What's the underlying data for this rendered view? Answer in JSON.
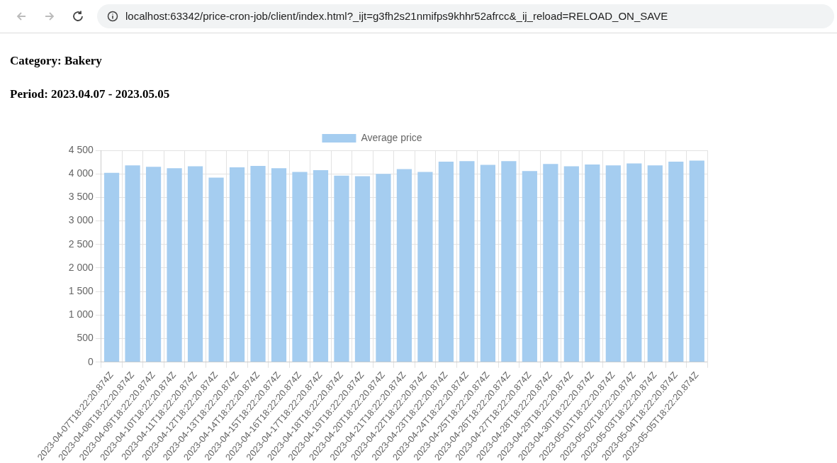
{
  "chart_data": {
    "type": "bar",
    "title": "Category: Bakery",
    "subtitle": "Period: 2023.04.07 - 2023.05.05",
    "annotations": [
      "localhost:63342/price-cron-job/client/index.html?_ijt=g3fh2s21nmifps9khhr52afrcc&_ij_reload=RELOAD_ON_SAVE"
    ],
    "categories": [
      "2023-04-07T18:22:20.874Z",
      "2023-04-08T18:22:20.874Z",
      "2023-04-09T18:22:20.874Z",
      "2023-04-10T18:22:20.874Z",
      "2023-04-11T18:22:20.874Z",
      "2023-04-12T18:22:20.874Z",
      "2023-04-13T18:22:20.874Z",
      "2023-04-14T18:22:20.874Z",
      "2023-04-15T18:22:20.874Z",
      "2023-04-16T18:22:20.874Z",
      "2023-04-17T18:22:20.874Z",
      "2023-04-18T18:22:20.874Z",
      "2023-04-19T18:22:20.874Z",
      "2023-04-20T18:22:20.874Z",
      "2023-04-21T18:22:20.874Z",
      "2023-04-22T18:22:20.874Z",
      "2023-04-23T18:22:20.874Z",
      "2023-04-24T18:22:20.874Z",
      "2023-04-25T18:22:20.874Z",
      "2023-04-26T18:22:20.874Z",
      "2023-04-27T18:22:20.874Z",
      "2023-04-28T18:22:20.874Z",
      "2023-04-29T18:22:20.874Z",
      "2023-04-30T18:22:20.874Z",
      "2023-05-01T18:22:20.874Z",
      "2023-05-02T18:22:20.874Z",
      "2023-05-03T18:22:20.874Z",
      "2023-05-04T18:22:20.874Z",
      "2023-05-05T18:22:20.874Z"
    ],
    "series": [
      {
        "name": "Average price",
        "color": "#a5cdf0",
        "values": [
          4020,
          4180,
          4150,
          4120,
          4160,
          3920,
          4140,
          4170,
          4120,
          4040,
          4080,
          3960,
          3950,
          4000,
          4100,
          4040,
          4260,
          4270,
          4190,
          4270,
          4060,
          4210,
          4160,
          4200,
          4180,
          4220,
          4180,
          4260,
          4280
        ]
      }
    ],
    "ylim": [
      0,
      4500
    ],
    "yticks": [
      0,
      500,
      {
        "value": 1000,
        "label": "1 000"
      },
      {
        "value": 1500,
        "label": "1 500"
      },
      {
        "value": 2000,
        "label": "2 000"
      },
      {
        "value": 2500,
        "label": "2 500"
      },
      {
        "value": 3000,
        "label": "3 000"
      },
      {
        "value": 3500,
        "label": "3 500"
      },
      {
        "value": 4000,
        "label": "4 000"
      },
      {
        "value": 4500,
        "label": "4 500"
      }
    ],
    "grid": true,
    "legend": "top"
  }
}
